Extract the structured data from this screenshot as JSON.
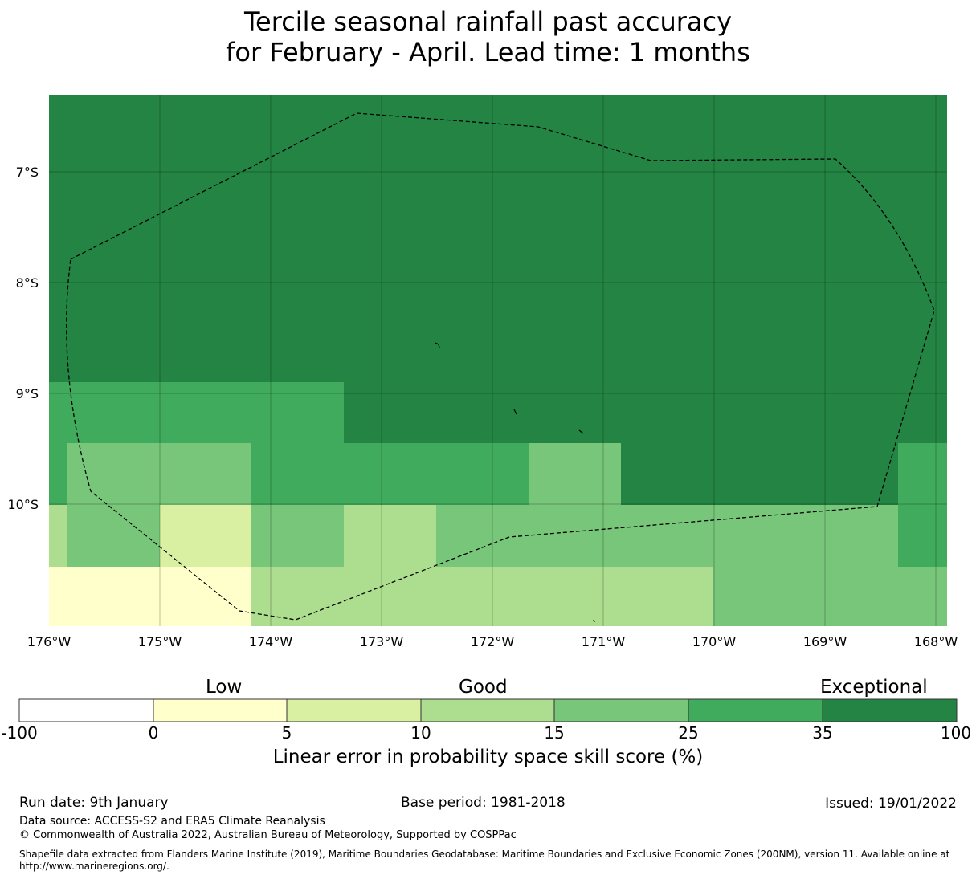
{
  "title": {
    "line1": "Tercile seasonal rainfall past accuracy",
    "line2": "for February - April. Lead time: 1 months"
  },
  "map": {
    "lat_labels": [
      "7°S",
      "8°S",
      "9°S",
      "10°S"
    ],
    "lon_labels": [
      "176°W",
      "175°W",
      "174°W",
      "173°W",
      "172°W",
      "171°W",
      "170°W",
      "169°W",
      "168°W"
    ]
  },
  "colorbar": {
    "category_labels": [
      "Low",
      "Good",
      "Exceptional"
    ],
    "ticks": [
      "-100",
      "0",
      "5",
      "10",
      "15",
      "25",
      "35",
      "100"
    ],
    "colors": [
      "#ffffff",
      "#ffffcc",
      "#d9f0a3",
      "#addd8e",
      "#78c679",
      "#41ab5d",
      "#238443"
    ],
    "axis_label": "Linear error in probability space skill score (%)"
  },
  "footer": {
    "run_date": "Run date: 9th January",
    "base_period": "Base period: 1981-2018",
    "issued": "Issued: 19/01/2022",
    "data_source": "Data source: ACCESS-S2 and ERA5 Climate Reanalysis",
    "copyright": "© Commonwealth of Australia 2022, Australian Bureau of Meteorology, Supported by COSPPac",
    "shapefile_line1": "Shapefile data extracted from Flanders Marine Institute (2019), Maritime Boundaries Geodatabase: Maritime Boundaries and Exclusive Economic Zones (200NM), version 11. Available online at",
    "shapefile_line2": "http://www.marineregions.org/."
  }
}
